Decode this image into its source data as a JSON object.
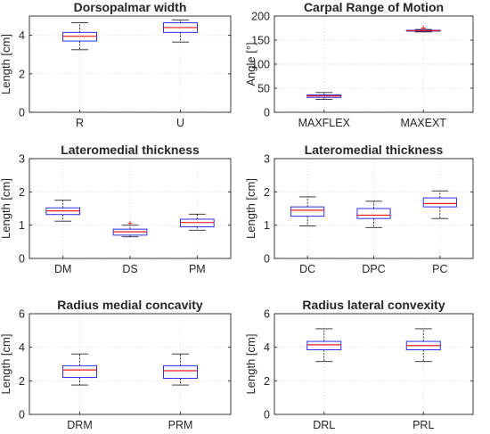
{
  "chart_data": [
    {
      "type": "box",
      "title": "Dorsopalmar width",
      "ylabel": "Length [cm]",
      "ylim": [
        0,
        5
      ],
      "yticks": [
        0,
        2,
        4
      ],
      "grid": true,
      "categories": [
        "R",
        "U"
      ],
      "boxes": [
        {
          "min": 3.25,
          "q1": 3.7,
          "median": 3.95,
          "q3": 4.15,
          "max": 4.65,
          "outliers": []
        },
        {
          "min": 3.65,
          "q1": 4.15,
          "median": 4.4,
          "q3": 4.65,
          "max": 4.8,
          "outliers": []
        }
      ]
    },
    {
      "type": "box",
      "title": "Carpal Range of Motion",
      "ylabel": "Angle [°]",
      "ylim": [
        0,
        200
      ],
      "yticks": [
        0,
        50,
        100,
        150,
        200
      ],
      "grid": true,
      "categories": [
        "MAXFLEX",
        "MAXEXT"
      ],
      "boxes": [
        {
          "min": 27,
          "q1": 31,
          "median": 34,
          "q3": 36,
          "max": 41,
          "outliers": []
        },
        {
          "min": 167,
          "q1": 168.5,
          "median": 169.5,
          "q3": 170.5,
          "max": 172,
          "outliers": [
            175
          ]
        }
      ]
    },
    {
      "type": "box",
      "title": "Lateromedial thickness",
      "ylabel": "Length [cm]",
      "ylim": [
        0,
        3
      ],
      "yticks": [
        0,
        1,
        2,
        3
      ],
      "grid": true,
      "categories": [
        "DM",
        "DS",
        "PM"
      ],
      "boxes": [
        {
          "min": 1.12,
          "q1": 1.32,
          "median": 1.43,
          "q3": 1.52,
          "max": 1.75,
          "outliers": []
        },
        {
          "min": 0.65,
          "q1": 0.7,
          "median": 0.8,
          "q3": 0.88,
          "max": 1.0,
          "outliers": [
            1.06
          ]
        },
        {
          "min": 0.85,
          "q1": 0.95,
          "median": 1.08,
          "q3": 1.18,
          "max": 1.33,
          "outliers": []
        }
      ]
    },
    {
      "type": "box",
      "title": "Lateromedial thickness",
      "ylabel": "Length [cm]",
      "ylim": [
        0,
        3
      ],
      "yticks": [
        0,
        1,
        2,
        3
      ],
      "grid": true,
      "categories": [
        "DC",
        "DPC",
        "PC"
      ],
      "boxes": [
        {
          "min": 0.98,
          "q1": 1.27,
          "median": 1.45,
          "q3": 1.55,
          "max": 1.85,
          "outliers": []
        },
        {
          "min": 0.93,
          "q1": 1.2,
          "median": 1.3,
          "q3": 1.5,
          "max": 1.72,
          "outliers": []
        },
        {
          "min": 1.2,
          "q1": 1.55,
          "median": 1.65,
          "q3": 1.82,
          "max": 2.03,
          "outliers": []
        }
      ]
    },
    {
      "type": "box",
      "title": "Radius medial concavity",
      "ylabel": "Length [cm]",
      "ylim": [
        0,
        6
      ],
      "yticks": [
        0,
        2,
        4,
        6
      ],
      "grid": true,
      "categories": [
        "DRM",
        "PRM"
      ],
      "boxes": [
        {
          "min": 1.75,
          "q1": 2.2,
          "median": 2.65,
          "q3": 2.9,
          "max": 3.6,
          "outliers": []
        },
        {
          "min": 1.75,
          "q1": 2.15,
          "median": 2.6,
          "q3": 2.9,
          "max": 3.6,
          "outliers": []
        }
      ]
    },
    {
      "type": "box",
      "title": "Radius lateral convexity",
      "ylabel": "Length [cm]",
      "ylim": [
        0,
        6
      ],
      "yticks": [
        0,
        2,
        4,
        6
      ],
      "grid": true,
      "categories": [
        "DRL",
        "PRL"
      ],
      "boxes": [
        {
          "min": 3.15,
          "q1": 3.85,
          "median": 4.15,
          "q3": 4.35,
          "max": 5.1,
          "outliers": []
        },
        {
          "min": 3.15,
          "q1": 3.85,
          "median": 4.1,
          "q3": 4.35,
          "max": 5.1,
          "outliers": []
        }
      ]
    }
  ],
  "colors": {
    "box": "#2e2ee6",
    "median": "#e81e1e",
    "outlier": "#e81e1e",
    "axis": "#262626",
    "grid": "#e2e2e2"
  }
}
